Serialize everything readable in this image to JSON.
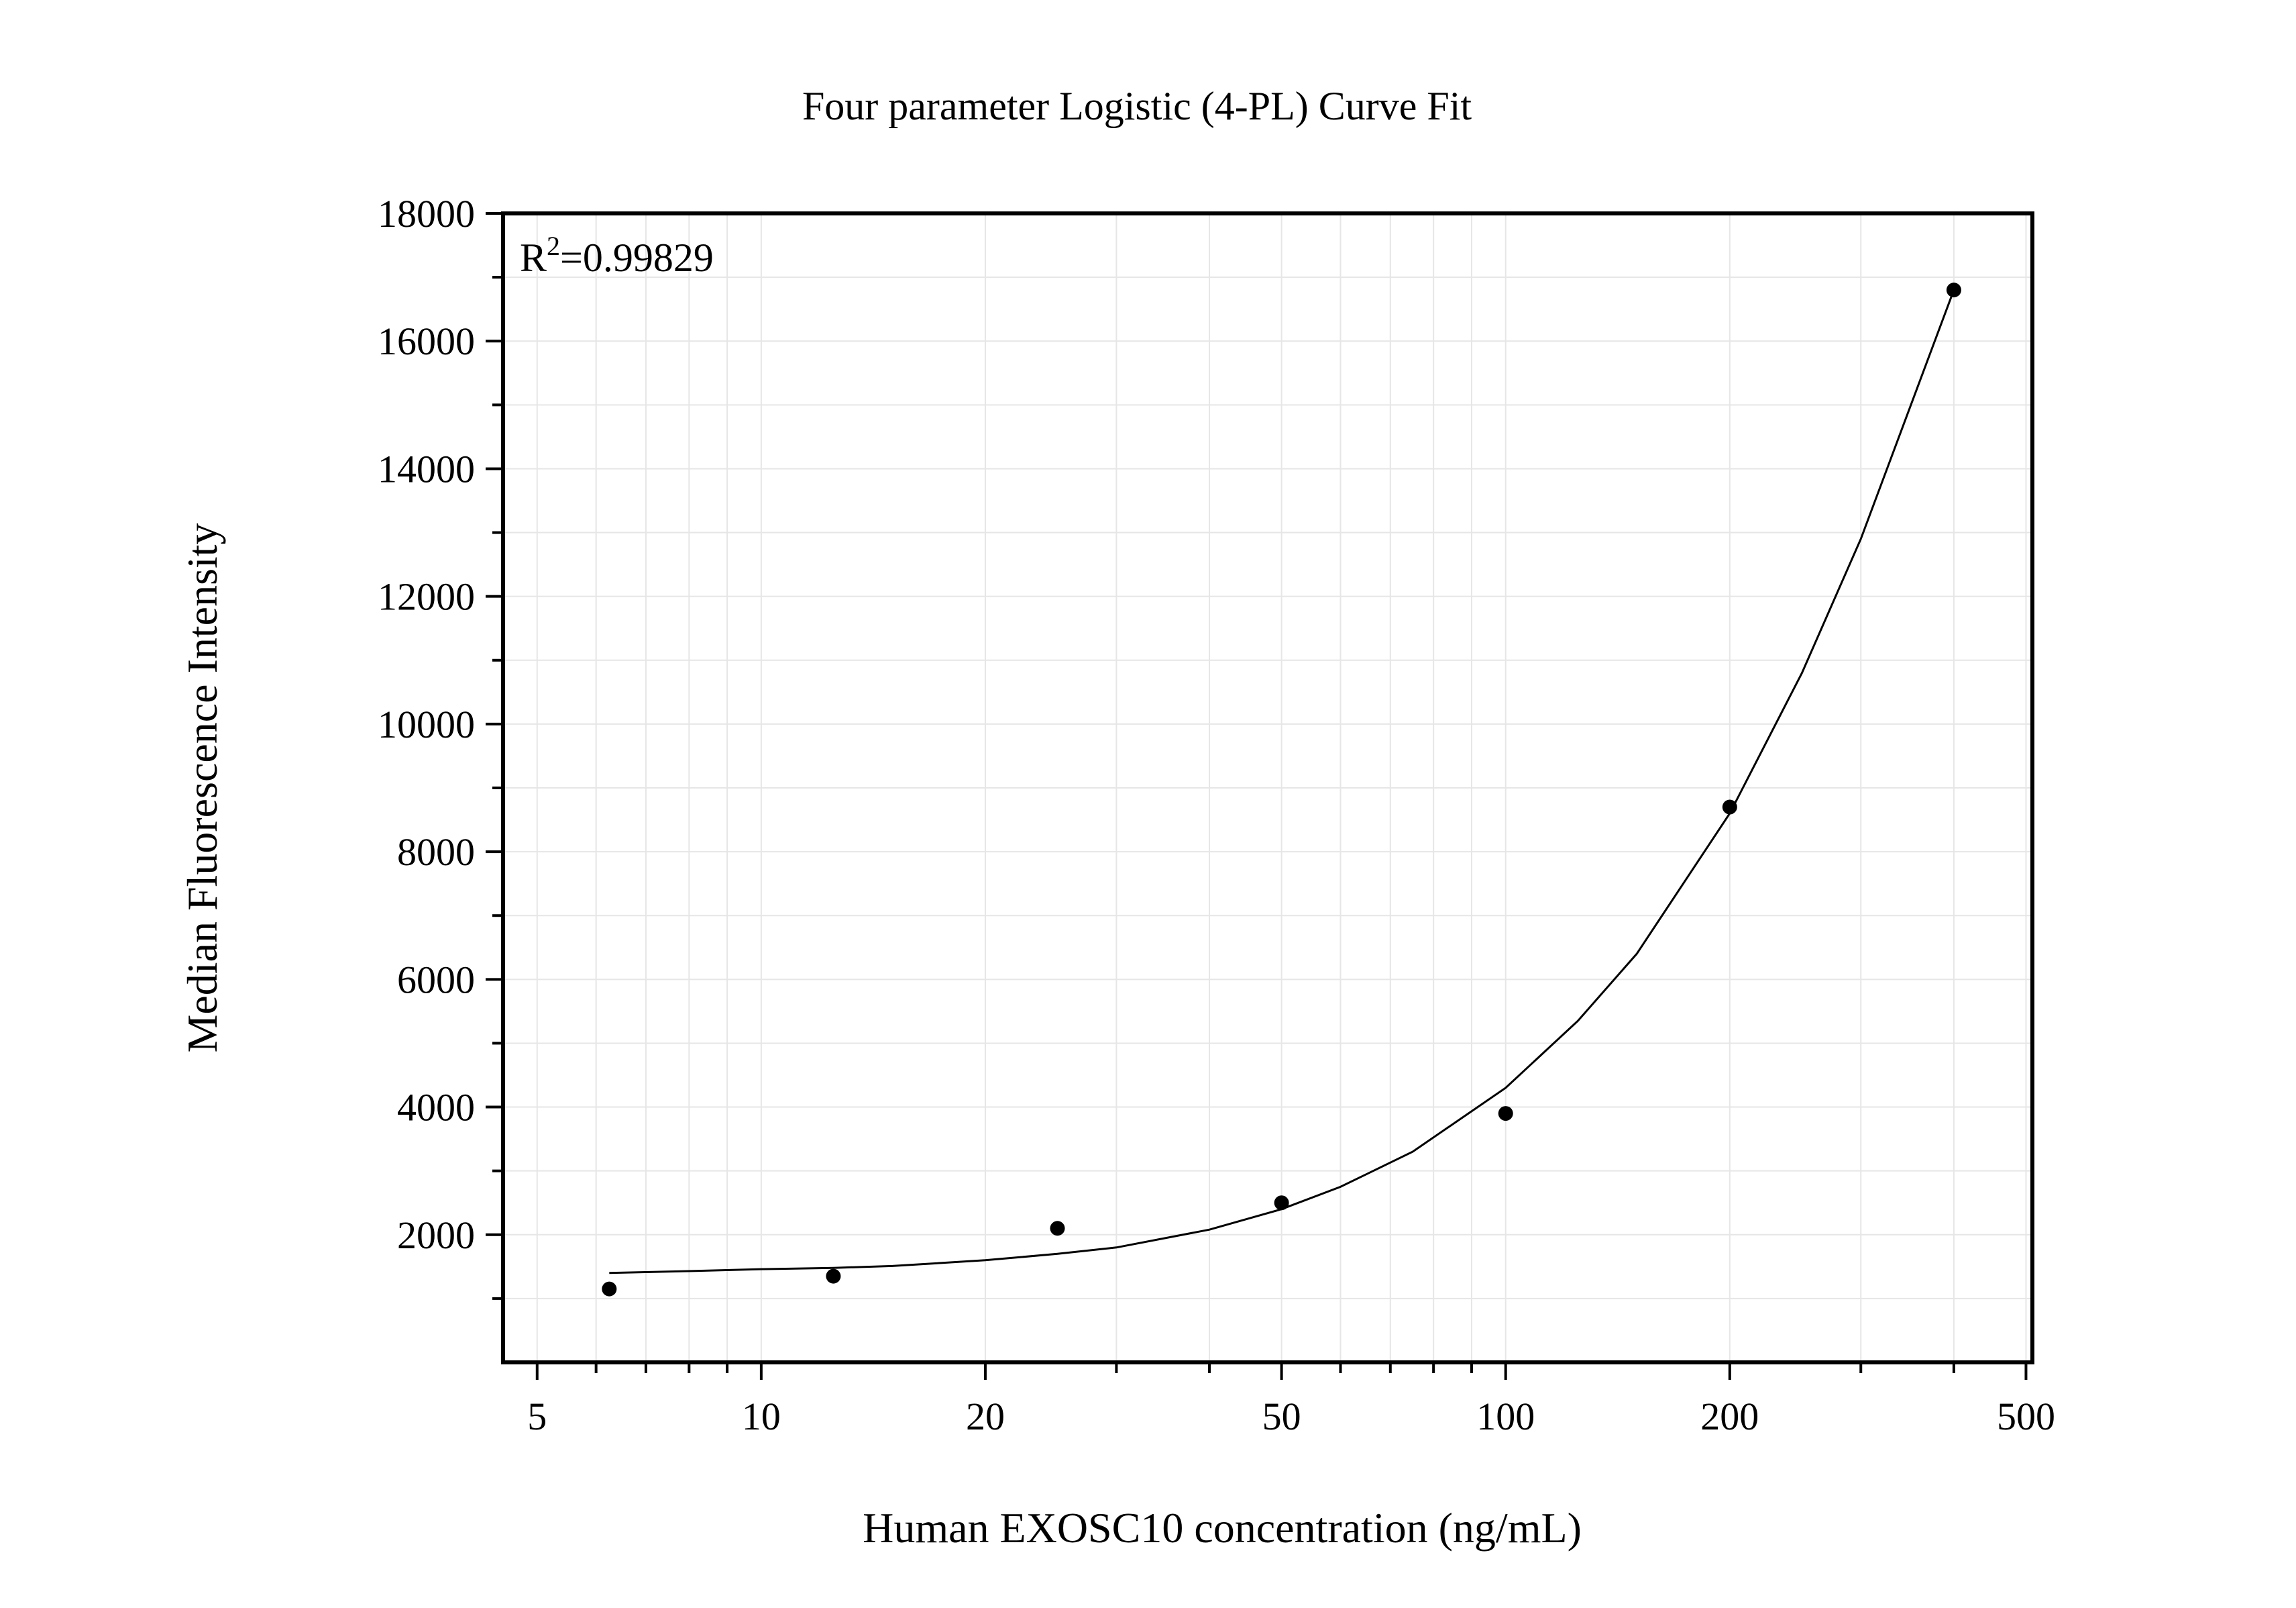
{
  "chart_data": {
    "type": "scatter",
    "title": "Four parameter Logistic (4-PL) Curve Fit",
    "xlabel": "Human EXOSC10 concentration (ng/mL)",
    "ylabel": "Median Fluorescence Intensity",
    "x_scale": "log",
    "xlim": [
      4.5,
      510
    ],
    "ylim": [
      0,
      18000
    ],
    "x_ticks": [
      5,
      10,
      20,
      50,
      100,
      200,
      500
    ],
    "x_tick_labels": [
      "5",
      "10",
      "20",
      "50",
      "100",
      "200",
      "500"
    ],
    "y_ticks": [
      2000,
      4000,
      6000,
      8000,
      10000,
      12000,
      14000,
      16000,
      18000
    ],
    "y_tick_labels": [
      "2000",
      "4000",
      "6000",
      "8000",
      "10000",
      "12000",
      "14000",
      "16000",
      "18000"
    ],
    "grid": true,
    "annotation": {
      "r2_prefix": "R",
      "r2_superscript": "2",
      "r2_value": "=0.99829"
    },
    "series": [
      {
        "type": "scatter",
        "x": [
          6.25,
          12.5,
          25,
          50,
          100,
          200,
          400
        ],
        "y": [
          1150,
          1350,
          2100,
          2500,
          3900,
          8700,
          16800
        ]
      },
      {
        "type": "line",
        "x": [
          6.25,
          8,
          10,
          12.5,
          15,
          20,
          25,
          30,
          40,
          50,
          60,
          75,
          100,
          125,
          150,
          200,
          250,
          300,
          400
        ],
        "y": [
          1400,
          1430,
          1460,
          1480,
          1510,
          1600,
          1700,
          1800,
          2080,
          2400,
          2750,
          3300,
          4300,
          5350,
          6400,
          8600,
          10800,
          12900,
          16800
        ]
      }
    ]
  }
}
